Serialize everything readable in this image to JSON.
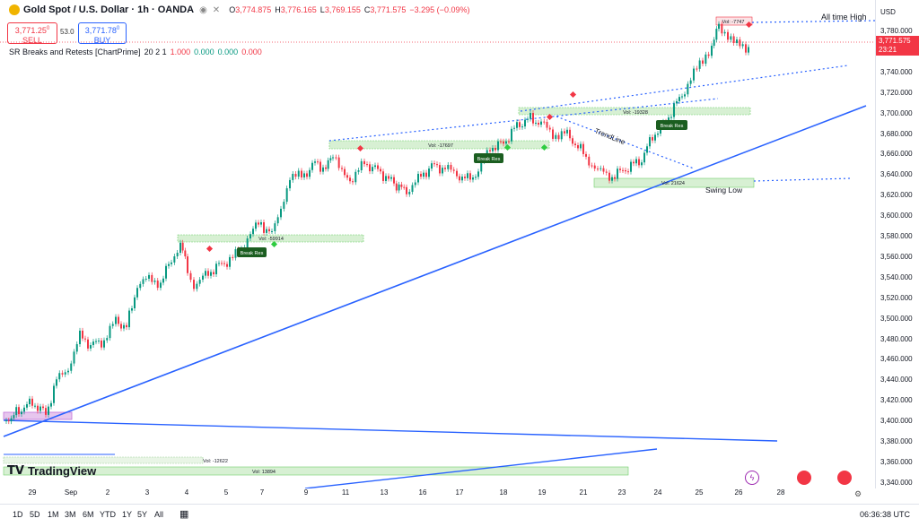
{
  "header": {
    "title": "Gold Spot / U.S. Dollar · 1h · OANDA",
    "ohlc": [
      {
        "k": "O",
        "v": "3,774.875"
      },
      {
        "k": "H",
        "v": "3,776.165"
      },
      {
        "k": "L",
        "v": "3,769.155"
      },
      {
        "k": "C",
        "v": "3,771.575"
      },
      {
        "k": "",
        "v": "−3.295 (−0.09%)"
      }
    ],
    "sell_price": "3,771.25",
    "sell_sup": "0",
    "sell_label": "SELL",
    "buy_price": "3,771.78",
    "buy_sup": "0",
    "buy_label": "BUY",
    "spread": "53.0",
    "indicator_name": "SR Breaks and Retests [ChartPrime]",
    "indicator_params": "20 2 1",
    "indicator_values": [
      "1.000",
      "0.000",
      "0.000",
      "0.000"
    ]
  },
  "price_scale": {
    "currency": "USD",
    "ticks": [
      "3,780.000",
      "3,760.000",
      "3,740.000",
      "3,720.000",
      "3,700.000",
      "3,680.000",
      "3,660.000",
      "3,640.000",
      "3,620.000",
      "3,600.000",
      "3,580.000",
      "3,560.000",
      "3,540.000",
      "3,520.000",
      "3,500.000",
      "3,480.000",
      "3,460.000",
      "3,440.000",
      "3,420.000",
      "3,400.000",
      "3,380.000",
      "3,360.000",
      "3,340.000"
    ],
    "current_price": "3,771.575",
    "countdown": "23:21"
  },
  "time_axis": {
    "labels": [
      "29",
      "Sep",
      "2",
      "3",
      "4",
      "5",
      "7",
      "9",
      "11",
      "13",
      "16",
      "17",
      "18",
      "19",
      "21",
      "23",
      "24",
      "25",
      "26",
      "28"
    ]
  },
  "annotations": {
    "all_time_high": "All time High",
    "trendline": "TrendLine",
    "swing_low": "Swing Low",
    "vol_labels": [
      "Vol: -7747",
      "Vol: -19328",
      "Vol: -17697",
      "Vol: -59914",
      "Vol: 21624",
      "Vol: -12622",
      "Vol: 13894"
    ],
    "break_res": [
      "Break Res",
      "Break Res",
      "Break Res",
      "Break Res"
    ]
  },
  "bottom_bar": {
    "ranges": [
      "1D",
      "5D",
      "1M",
      "3M",
      "6M",
      "YTD",
      "1Y",
      "5Y",
      "All"
    ],
    "clock": "06:36:38 UTC"
  },
  "logo": {
    "text": "TradingView"
  },
  "colors": {
    "up": "#089981",
    "down": "#f23645",
    "trend": "#2962ff",
    "zone": "#b7e0b3",
    "atl": "#f5a0b0"
  }
}
